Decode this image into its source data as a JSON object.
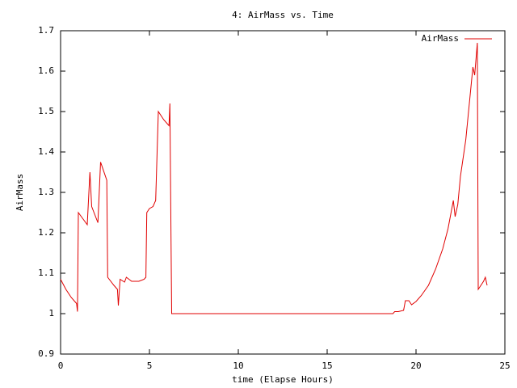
{
  "chart_data": {
    "type": "line",
    "title": "4: AirMass vs. Time",
    "x_label": "time (Elapse Hours)",
    "y_label": "AirMass",
    "series": [
      {
        "name": "AirMass",
        "color": "#e00000",
        "x": [
          0,
          0.3,
          0.6,
          0.9,
          0.95,
          1.0,
          1.5,
          1.65,
          1.75,
          2.1,
          2.25,
          2.6,
          2.65,
          3.0,
          3.2,
          3.25,
          3.35,
          3.6,
          3.7,
          4.0,
          4.4,
          4.7,
          4.8,
          4.85,
          5.0,
          5.2,
          5.35,
          5.5,
          5.8,
          6.1,
          6.15,
          6.25,
          18.7,
          18.8,
          19.0,
          19.3,
          19.4,
          19.6,
          19.75,
          20.0,
          20.3,
          20.7,
          21.1,
          21.5,
          21.8,
          22.1,
          22.2,
          22.35,
          22.5,
          22.8,
          23.0,
          23.2,
          23.3,
          23.45,
          23.5,
          23.8,
          23.9,
          24.0
        ],
        "values": [
          1.085,
          1.06,
          1.04,
          1.025,
          1.005,
          1.25,
          1.22,
          1.35,
          1.265,
          1.225,
          1.375,
          1.33,
          1.09,
          1.07,
          1.06,
          1.02,
          1.085,
          1.078,
          1.09,
          1.08,
          1.08,
          1.085,
          1.09,
          1.25,
          1.26,
          1.265,
          1.28,
          1.5,
          1.48,
          1.465,
          1.52,
          1.0,
          1.0,
          1.005,
          1.005,
          1.008,
          1.032,
          1.032,
          1.022,
          1.03,
          1.045,
          1.07,
          1.11,
          1.16,
          1.21,
          1.28,
          1.24,
          1.27,
          1.34,
          1.43,
          1.52,
          1.61,
          1.59,
          1.67,
          1.06,
          1.08,
          1.09,
          1.07
        ]
      }
    ],
    "xlim": [
      0,
      25
    ],
    "xticks": [
      0,
      5,
      10,
      15,
      20,
      25
    ],
    "ylim": [
      0.9,
      1.7
    ],
    "yticks": [
      0.9,
      1,
      1.1,
      1.2,
      1.3,
      1.4,
      1.5,
      1.6,
      1.7
    ],
    "grid": false,
    "legend": "top-right"
  }
}
